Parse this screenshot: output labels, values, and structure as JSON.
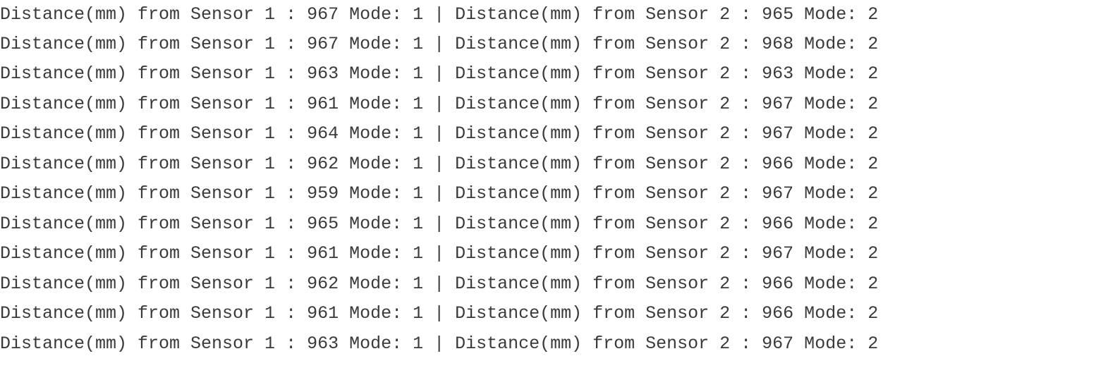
{
  "console": {
    "lines": [
      "Distance(mm) from Sensor 1 : 967 Mode: 1 | Distance(mm) from Sensor 2 : 965 Mode: 2",
      "Distance(mm) from Sensor 1 : 967 Mode: 1 | Distance(mm) from Sensor 2 : 968 Mode: 2",
      "Distance(mm) from Sensor 1 : 963 Mode: 1 | Distance(mm) from Sensor 2 : 963 Mode: 2",
      "Distance(mm) from Sensor 1 : 961 Mode: 1 | Distance(mm) from Sensor 2 : 967 Mode: 2",
      "Distance(mm) from Sensor 1 : 964 Mode: 1 | Distance(mm) from Sensor 2 : 967 Mode: 2",
      "Distance(mm) from Sensor 1 : 962 Mode: 1 | Distance(mm) from Sensor 2 : 966 Mode: 2",
      "Distance(mm) from Sensor 1 : 959 Mode: 1 | Distance(mm) from Sensor 2 : 967 Mode: 2",
      "Distance(mm) from Sensor 1 : 965 Mode: 1 | Distance(mm) from Sensor 2 : 966 Mode: 2",
      "Distance(mm) from Sensor 1 : 961 Mode: 1 | Distance(mm) from Sensor 2 : 967 Mode: 2",
      "Distance(mm) from Sensor 1 : 962 Mode: 1 | Distance(mm) from Sensor 2 : 966 Mode: 2",
      "Distance(mm) from Sensor 1 : 961 Mode: 1 | Distance(mm) from Sensor 2 : 966 Mode: 2",
      "Distance(mm) from Sensor 1 : 963 Mode: 1 | Distance(mm) from Sensor 2 : 967 Mode: 2"
    ]
  }
}
